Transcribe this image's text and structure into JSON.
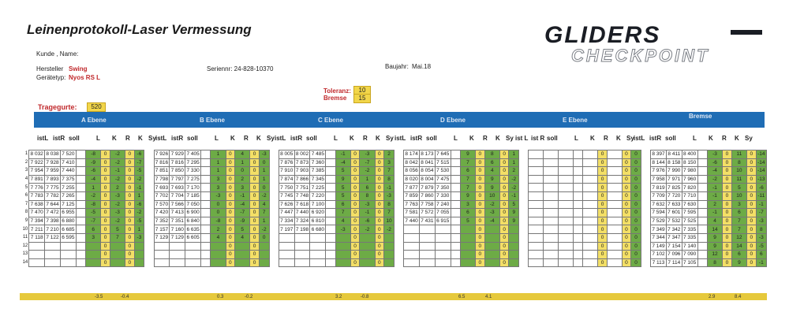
{
  "header": {
    "title": "Leinenprotokoll-Laser Vermessung",
    "kunde_label": "Kunde , Name:",
    "hersteller_label": "Hersteller",
    "hersteller_value": "Swing",
    "geraetetyp_label": "Gerätetyp:",
    "geraetetyp_value": "Nyos RS L",
    "seriennr": "Seriennr: 24-828-10370",
    "baujahr_label": "Baujahr:",
    "baujahr_value": "Mai.18",
    "toleranz_label": "Toleranz:",
    "toleranz_value": "10",
    "bremse_label": "Bremse",
    "bremse_value": "15",
    "tragegurte_label": "Tragegurte:",
    "tragegurte_value": "520"
  },
  "logo": {
    "line1": "GLIDERS",
    "line2": "CHECKPOINT"
  },
  "sections": [
    "A Ebene",
    "B Ebene",
    "C Ebene",
    "D Ebene",
    "E Ebene",
    "Bremse"
  ],
  "columns": {
    "istL": "istL",
    "istR": "istR",
    "soll": "soll",
    "L": "L",
    "K": "K",
    "R": "R",
    "Sy": "Sy",
    "istL_sp": "ist L",
    "istR_sp": "ist R"
  },
  "row_numbers": [
    "1",
    "2",
    "3",
    "4",
    "5",
    "6",
    "7",
    "8",
    "9",
    "10",
    "11",
    "12",
    "13",
    "14"
  ],
  "groups": {
    "A": [
      [
        "8 032",
        "8 038",
        "7 520",
        "-8",
        "0",
        "-2",
        "0",
        "-6"
      ],
      [
        "7 922",
        "7 928",
        "7 410",
        "-9",
        "0",
        "-2",
        "0",
        "-7"
      ],
      [
        "7 954",
        "7 959",
        "7 440",
        "-6",
        "0",
        "-1",
        "0",
        "-5"
      ],
      [
        "7 891",
        "7 893",
        "7 375",
        "-4",
        "0",
        "-2",
        "0",
        "-2"
      ],
      [
        "7 776",
        "7 775",
        "7 255",
        "1",
        "0",
        "2",
        "0",
        "-1"
      ],
      [
        "7 783",
        "7 782",
        "7 265",
        "-2",
        "0",
        "-3",
        "0",
        "1"
      ],
      [
        "7 638",
        "7 644",
        "7 125",
        "-8",
        "0",
        "-2",
        "0",
        "-6"
      ],
      [
        "7 470",
        "7 472",
        "6 955",
        "-5",
        "0",
        "-3",
        "0",
        "-2"
      ],
      [
        "7 394",
        "7 398",
        "6 880",
        "-7",
        "0",
        "-2",
        "0",
        "-5"
      ],
      [
        "7 211",
        "7 210",
        "6 685",
        "6",
        "0",
        "5",
        "0",
        "1"
      ],
      [
        "7 118",
        "7 122",
        "6 595",
        "3",
        "0",
        "7",
        "0",
        "-3"
      ],
      [
        "",
        "",
        "",
        "",
        "0",
        "",
        "0",
        ""
      ],
      [
        "",
        "",
        "",
        "",
        "0",
        "",
        "0",
        ""
      ],
      [
        "",
        "",
        "",
        "",
        "0",
        "",
        "0",
        ""
      ]
    ],
    "B": [
      [
        "7 926",
        "7 929",
        "7 405",
        "1",
        "0",
        "4",
        "0",
        "-3"
      ],
      [
        "7 816",
        "7 816",
        "7 295",
        "1",
        "0",
        "1",
        "0",
        "0"
      ],
      [
        "7 851",
        "7 850",
        "7 330",
        "1",
        "0",
        "0",
        "0",
        "1"
      ],
      [
        "7 798",
        "7 797",
        "7 275",
        "3",
        "0",
        "2",
        "0",
        "1"
      ],
      [
        "7 693",
        "7 693",
        "7 170",
        "3",
        "0",
        "3",
        "0",
        "0"
      ],
      [
        "7 702",
        "7 704",
        "7 185",
        "-3",
        "0",
        "-1",
        "0",
        "-2"
      ],
      [
        "7 570",
        "7 566",
        "7 050",
        "0",
        "0",
        "-4",
        "0",
        "4"
      ],
      [
        "7 420",
        "7 413",
        "6 900",
        "0",
        "0",
        "-7",
        "0",
        "7"
      ],
      [
        "7 352",
        "7 351",
        "6 840",
        "-8",
        "0",
        "-9",
        "0",
        "1"
      ],
      [
        "7 157",
        "7 160",
        "6 635",
        "2",
        "0",
        "5",
        "0",
        "-2"
      ],
      [
        "7 129",
        "7 129",
        "6 605",
        "4",
        "0",
        "4",
        "0",
        "0"
      ],
      [
        "",
        "",
        "",
        "",
        "0",
        "",
        "0",
        ""
      ],
      [
        "",
        "",
        "",
        "",
        "0",
        "",
        "0",
        ""
      ],
      [
        "",
        "",
        "",
        "",
        "0",
        "",
        "0",
        ""
      ]
    ],
    "C": [
      [
        "8 005",
        "8 002",
        "7 485",
        "-1",
        "0",
        "-3",
        "0",
        "2"
      ],
      [
        "7 876",
        "7 873",
        "7 360",
        "-4",
        "0",
        "-7",
        "0",
        "3"
      ],
      [
        "7 910",
        "7 903",
        "7 385",
        "5",
        "0",
        "-2",
        "0",
        "7"
      ],
      [
        "7 874",
        "7 866",
        "7 345",
        "9",
        "0",
        "1",
        "0",
        "8"
      ],
      [
        "7 750",
        "7 751",
        "7 225",
        "5",
        "0",
        "6",
        "0",
        "-1"
      ],
      [
        "7 745",
        "7 748",
        "7 220",
        "5",
        "0",
        "8",
        "0",
        "-3"
      ],
      [
        "7 626",
        "7 618",
        "7 100",
        "6",
        "0",
        "-3",
        "0",
        "8"
      ],
      [
        "7 447",
        "7 440",
        "6 920",
        "7",
        "0",
        "-1",
        "0",
        "7"
      ],
      [
        "7 334",
        "7 324",
        "6 810",
        "4",
        "0",
        "-6",
        "0",
        "10"
      ],
      [
        "7 197",
        "7 198",
        "6 680",
        "-3",
        "0",
        "-2",
        "0",
        "-2"
      ],
      [
        "",
        "",
        "",
        "",
        "0",
        "",
        "0",
        ""
      ],
      [
        "",
        "",
        "",
        "",
        "0",
        "",
        "0",
        ""
      ],
      [
        "",
        "",
        "",
        "",
        "0",
        "",
        "0",
        ""
      ],
      [
        "",
        "",
        "",
        "",
        "0",
        "",
        "0",
        ""
      ]
    ],
    "D": [
      [
        "8 174",
        "8 173",
        "7 645",
        "9",
        "0",
        "8",
        "0",
        "1"
      ],
      [
        "8 042",
        "8 041",
        "7 515",
        "7",
        "0",
        "6",
        "0",
        "1"
      ],
      [
        "8 056",
        "8 054",
        "7 530",
        "6",
        "0",
        "4",
        "0",
        "2"
      ],
      [
        "8 020",
        "8 004",
        "7 475",
        "7",
        "0",
        "9",
        "0",
        "-2"
      ],
      [
        "7 877",
        "7 879",
        "7 350",
        "7",
        "0",
        "9",
        "0",
        "-2"
      ],
      [
        "7 859",
        "7 860",
        "7 330",
        "9",
        "0",
        "10",
        "0",
        "-1"
      ],
      [
        "7 763",
        "7 758",
        "7 240",
        "3",
        "0",
        "-2",
        "0",
        "5"
      ],
      [
        "7 581",
        "7 572",
        "7 055",
        "6",
        "0",
        "-3",
        "0",
        "9"
      ],
      [
        "7 440",
        "7 431",
        "6 915",
        "5",
        "0",
        "-4",
        "0",
        "9"
      ],
      [
        "",
        "",
        "",
        "",
        "0",
        "",
        "0",
        ""
      ],
      [
        "",
        "",
        "",
        "",
        "0",
        "",
        "0",
        ""
      ],
      [
        "",
        "",
        "",
        "",
        "0",
        "",
        "0",
        ""
      ],
      [
        "",
        "",
        "",
        "",
        "0",
        "",
        "0",
        ""
      ],
      [
        "",
        "",
        "",
        "",
        "0",
        "",
        "0",
        ""
      ]
    ],
    "E": [
      [
        "",
        "",
        "",
        "",
        "0",
        "",
        "0",
        "0"
      ],
      [
        "",
        "",
        "",
        "",
        "0",
        "",
        "0",
        "0"
      ],
      [
        "",
        "",
        "",
        "",
        "0",
        "",
        "0",
        "0"
      ],
      [
        "",
        "",
        "",
        "",
        "0",
        "",
        "0",
        "0"
      ],
      [
        "",
        "",
        "",
        "",
        "0",
        "",
        "0",
        "0"
      ],
      [
        "",
        "",
        "",
        "",
        "0",
        "",
        "0",
        "0"
      ],
      [
        "",
        "",
        "",
        "",
        "0",
        "",
        "0",
        "0"
      ],
      [
        "",
        "",
        "",
        "",
        "0",
        "",
        "0",
        "0"
      ],
      [
        "",
        "",
        "",
        "",
        "0",
        "",
        "0",
        "0"
      ],
      [
        "",
        "",
        "",
        "",
        "0",
        "",
        "0",
        "0"
      ],
      [
        "",
        "",
        "",
        "",
        "0",
        "",
        "0",
        "0"
      ],
      [
        "",
        "",
        "",
        "",
        "0",
        "",
        "0",
        "0"
      ],
      [
        "",
        "",
        "",
        "",
        "0",
        "",
        "0",
        "0"
      ],
      [
        "",
        "",
        "",
        "",
        "0",
        "",
        "0",
        "0"
      ]
    ],
    "Br": [
      [
        "8 397",
        "8 411",
        "8 400",
        "-3",
        "0",
        "11",
        "0",
        "-14"
      ],
      [
        "8 144",
        "8 158",
        "8 150",
        "-6",
        "0",
        "8",
        "0",
        "-14"
      ],
      [
        "7 976",
        "7 990",
        "7 980",
        "-4",
        "0",
        "10",
        "0",
        "-14"
      ],
      [
        "7 958",
        "7 971",
        "7 960",
        "-2",
        "0",
        "11",
        "0",
        "-13"
      ],
      [
        "7 819",
        "7 825",
        "7 820",
        "-1",
        "0",
        "5",
        "0",
        "-6"
      ],
      [
        "7 709",
        "7 720",
        "7 710",
        "-1",
        "0",
        "10",
        "0",
        "-11"
      ],
      [
        "7 632",
        "7 633",
        "7 630",
        "2",
        "0",
        "3",
        "0",
        "-1"
      ],
      [
        "7 594",
        "7 601",
        "7 595",
        "-1",
        "0",
        "6",
        "0",
        "-7"
      ],
      [
        "7 529",
        "7 532",
        "7 525",
        "4",
        "0",
        "7",
        "0",
        "-3"
      ],
      [
        "7 349",
        "7 342",
        "7 335",
        "14",
        "0",
        "7",
        "0",
        "8"
      ],
      [
        "7 344",
        "7 347",
        "7 335",
        "9",
        "0",
        "12",
        "0",
        "-3"
      ],
      [
        "7 149",
        "7 154",
        "7 140",
        "9",
        "0",
        "14",
        "0",
        "-5"
      ],
      [
        "7 102",
        "7 096",
        "7 090",
        "12",
        "0",
        "6",
        "0",
        "6"
      ],
      [
        "7 113",
        "7 114",
        "7 105",
        "8",
        "0",
        "9",
        "0",
        "-1"
      ]
    ]
  },
  "summary": [
    {
      "label": "-3.5"
    },
    {
      "label": "-0.4"
    },
    {
      "label": "0.3"
    },
    {
      "label": "-0.2"
    },
    {
      "label": "3.2"
    },
    {
      "label": "-0.8"
    },
    {
      "label": "6.5"
    },
    {
      "label": "4.1"
    },
    {
      "label": "2.9"
    },
    {
      "label": "8.4"
    }
  ]
}
